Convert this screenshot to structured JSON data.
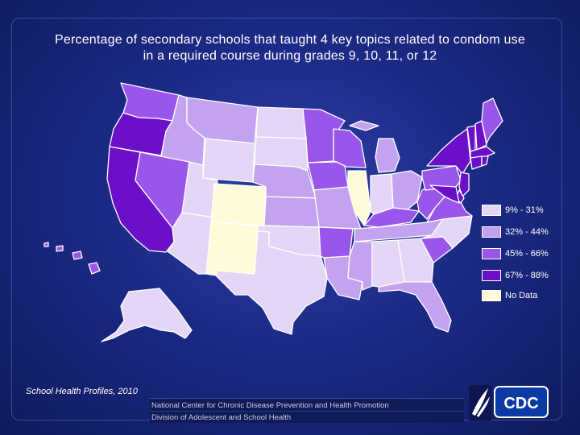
{
  "title_line1": "Percentage of secondary schools that taught 4 key topics related to condom use",
  "title_line2": "in a required course during grades 9, 10, 11, or 12",
  "source": "School Health Profiles, 2010",
  "footer": {
    "line1": "National Center for Chronic Disease Prevention and Health Promotion",
    "line2": "Division of Adolescent and School Health"
  },
  "logo": {
    "text": "CDC"
  },
  "colors": {
    "c1": "#e4d6f7",
    "c2": "#c3a3ef",
    "c3": "#9a55ea",
    "c4": "#6b10c8",
    "nodata": "#fdfbd8"
  },
  "legend": [
    {
      "label": "9% - 31%",
      "color_key": "c1"
    },
    {
      "label": "32% - 44%",
      "color_key": "c2"
    },
    {
      "label": "45% - 66%",
      "color_key": "c3"
    },
    {
      "label": "67% - 88%",
      "color_key": "c4"
    },
    {
      "label": "No Data",
      "color_key": "nodata"
    }
  ],
  "states": [
    {
      "id": "WA",
      "cls": "c3"
    },
    {
      "id": "OR",
      "cls": "c4"
    },
    {
      "id": "CA",
      "cls": "c4"
    },
    {
      "id": "ID",
      "cls": "c2"
    },
    {
      "id": "NV",
      "cls": "c3"
    },
    {
      "id": "MT",
      "cls": "c2"
    },
    {
      "id": "WY",
      "cls": "c1"
    },
    {
      "id": "UT",
      "cls": "c1"
    },
    {
      "id": "AZ",
      "cls": "c1"
    },
    {
      "id": "CO",
      "cls": "nodata"
    },
    {
      "id": "NM",
      "cls": "nodata"
    },
    {
      "id": "ND",
      "cls": "c1"
    },
    {
      "id": "SD",
      "cls": "c1"
    },
    {
      "id": "NE",
      "cls": "c2"
    },
    {
      "id": "KS",
      "cls": "c2"
    },
    {
      "id": "OK",
      "cls": "c1"
    },
    {
      "id": "TX",
      "cls": "c1"
    },
    {
      "id": "MN",
      "cls": "c3"
    },
    {
      "id": "IA",
      "cls": "c3"
    },
    {
      "id": "MO",
      "cls": "c2"
    },
    {
      "id": "AR",
      "cls": "c3"
    },
    {
      "id": "LA",
      "cls": "c2"
    },
    {
      "id": "WI",
      "cls": "c3"
    },
    {
      "id": "IL",
      "cls": "nodata"
    },
    {
      "id": "MI",
      "cls": "c2"
    },
    {
      "id": "IN",
      "cls": "c1"
    },
    {
      "id": "OH",
      "cls": "c2"
    },
    {
      "id": "KY",
      "cls": "c3"
    },
    {
      "id": "TN",
      "cls": "c2"
    },
    {
      "id": "MS",
      "cls": "c2"
    },
    {
      "id": "AL",
      "cls": "c1"
    },
    {
      "id": "GA",
      "cls": "c1"
    },
    {
      "id": "FL",
      "cls": "c2"
    },
    {
      "id": "SC",
      "cls": "c3"
    },
    {
      "id": "NC",
      "cls": "c1"
    },
    {
      "id": "VA",
      "cls": "c3"
    },
    {
      "id": "WV",
      "cls": "c3"
    },
    {
      "id": "PA",
      "cls": "c3"
    },
    {
      "id": "NY",
      "cls": "c4"
    },
    {
      "id": "VT",
      "cls": "c4"
    },
    {
      "id": "NH",
      "cls": "c4"
    },
    {
      "id": "ME",
      "cls": "c3"
    },
    {
      "id": "MA",
      "cls": "c4"
    },
    {
      "id": "CT",
      "cls": "c4"
    },
    {
      "id": "RI",
      "cls": "c4"
    },
    {
      "id": "NJ",
      "cls": "c4"
    },
    {
      "id": "DE",
      "cls": "c4"
    },
    {
      "id": "MD",
      "cls": "c4"
    },
    {
      "id": "AK",
      "cls": "c1"
    },
    {
      "id": "HI",
      "cls": "c3"
    }
  ]
}
